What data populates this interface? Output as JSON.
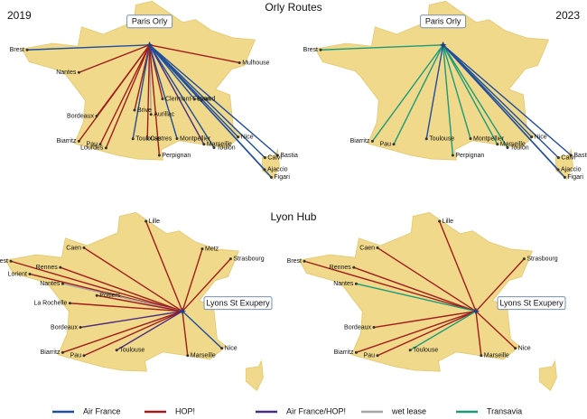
{
  "orly_title": "Orly Routes",
  "lyon_title": "Lyon Hub",
  "years": [
    "2019",
    "2023"
  ],
  "panels": [
    {
      "hub": "Paris Orly",
      "routes": [
        {
          "city": "Brest",
          "carrier": "Air France"
        },
        {
          "city": "Nantes",
          "carrier": "HOP!"
        },
        {
          "city": "Mulhouse",
          "carrier": "HOP!"
        },
        {
          "city": "Clermont-Ferrand",
          "carrier": "HOP!"
        },
        {
          "city": "Lyon",
          "carrier": "Air France"
        },
        {
          "city": "Brive",
          "carrier": "HOP!"
        },
        {
          "city": "Aurillac",
          "carrier": "wet lease"
        },
        {
          "city": "Bordeaux",
          "carrier": "HOP!"
        },
        {
          "city": "Biarritz",
          "carrier": "HOP!"
        },
        {
          "city": "Pau",
          "carrier": "HOP!"
        },
        {
          "city": "Toulouse",
          "carrier": "Air France"
        },
        {
          "city": "Lourdes",
          "carrier": "HOP!"
        },
        {
          "city": "Castres",
          "carrier": "HOP!"
        },
        {
          "city": "Perpignan",
          "carrier": "HOP!"
        },
        {
          "city": "Montpellier",
          "carrier": "Air France"
        },
        {
          "city": "Marseille",
          "carrier": "Air France/HOP!"
        },
        {
          "city": "Toulon",
          "carrier": "Air France"
        },
        {
          "city": "Nice",
          "carrier": "Air France"
        },
        {
          "city": "Bastia",
          "carrier": "Air France"
        },
        {
          "city": "Calvi",
          "carrier": "Air France"
        },
        {
          "city": "Ajaccio",
          "carrier": "Air France"
        },
        {
          "city": "Figari",
          "carrier": "Air France"
        }
      ]
    },
    {
      "hub": "Paris Orly",
      "routes": [
        {
          "city": "Brest",
          "carrier": "Transavia"
        },
        {
          "city": "Biarritz",
          "carrier": "Transavia"
        },
        {
          "city": "Pau",
          "carrier": "Transavia"
        },
        {
          "city": "Toulouse",
          "carrier": "Air France"
        },
        {
          "city": "Perpignan",
          "carrier": "Transavia"
        },
        {
          "city": "Montpellier",
          "carrier": "Transavia"
        },
        {
          "city": "Marseille",
          "carrier": "Transavia"
        },
        {
          "city": "Toulon",
          "carrier": "Transavia"
        },
        {
          "city": "Nice",
          "carrier": "Air France"
        },
        {
          "city": "Bastia",
          "carrier": "Air France"
        },
        {
          "city": "Calvi",
          "carrier": "Air France"
        },
        {
          "city": "Ajaccio",
          "carrier": "Air France"
        },
        {
          "city": "Figari",
          "carrier": "Air France"
        }
      ]
    },
    {
      "hub": "Lyons St Exupery",
      "routes": [
        {
          "city": "Lille",
          "carrier": "HOP!"
        },
        {
          "city": "Caen",
          "carrier": "HOP!"
        },
        {
          "city": "Metz",
          "carrier": "HOP!"
        },
        {
          "city": "Strasbourg",
          "carrier": "HOP!"
        },
        {
          "city": "Brest",
          "carrier": "HOP!"
        },
        {
          "city": "Rennes",
          "carrier": "HOP!"
        },
        {
          "city": "Lorient",
          "carrier": "HOP!"
        },
        {
          "city": "Nantes",
          "carrier": "wet lease"
        },
        {
          "city": "Poitiers",
          "carrier": "HOP!"
        },
        {
          "city": "La Rochelle",
          "carrier": "HOP!"
        },
        {
          "city": "Bordeaux",
          "carrier": "Air France/HOP!"
        },
        {
          "city": "Biarritz",
          "carrier": "HOP!"
        },
        {
          "city": "Pau",
          "carrier": "HOP!"
        },
        {
          "city": "Toulouse",
          "carrier": "Air France/HOP!"
        },
        {
          "city": "Marseille",
          "carrier": "HOP!"
        },
        {
          "city": "Nice",
          "carrier": "Air France"
        }
      ]
    },
    {
      "hub": "Lyons St Exupery",
      "routes": [
        {
          "city": "Lille",
          "carrier": "HOP!"
        },
        {
          "city": "Caen",
          "carrier": "HOP!"
        },
        {
          "city": "Strasbourg",
          "carrier": "HOP!"
        },
        {
          "city": "Brest",
          "carrier": "HOP!"
        },
        {
          "city": "Rennes",
          "carrier": "HOP!"
        },
        {
          "city": "Nantes",
          "carrier": "Transavia"
        },
        {
          "city": "Bordeaux",
          "carrier": "HOP!"
        },
        {
          "city": "Biarritz",
          "carrier": "HOP!"
        },
        {
          "city": "Pau",
          "carrier": "HOP!"
        },
        {
          "city": "Toulouse",
          "carrier": "Transavia"
        },
        {
          "city": "Marseille",
          "carrier": "HOP!"
        },
        {
          "city": "Nice",
          "carrier": "HOP!"
        }
      ]
    }
  ],
  "legend": [
    {
      "name": "Air France",
      "color": "#1f4e9c"
    },
    {
      "name": "HOP!",
      "color": "#a01c1c"
    },
    {
      "name": "Air France/HOP!",
      "color": "#4b2a82"
    },
    {
      "name": "wet lease",
      "color": "#a6a6a6"
    },
    {
      "name": "Transavia",
      "color": "#1a9a7a"
    }
  ]
}
